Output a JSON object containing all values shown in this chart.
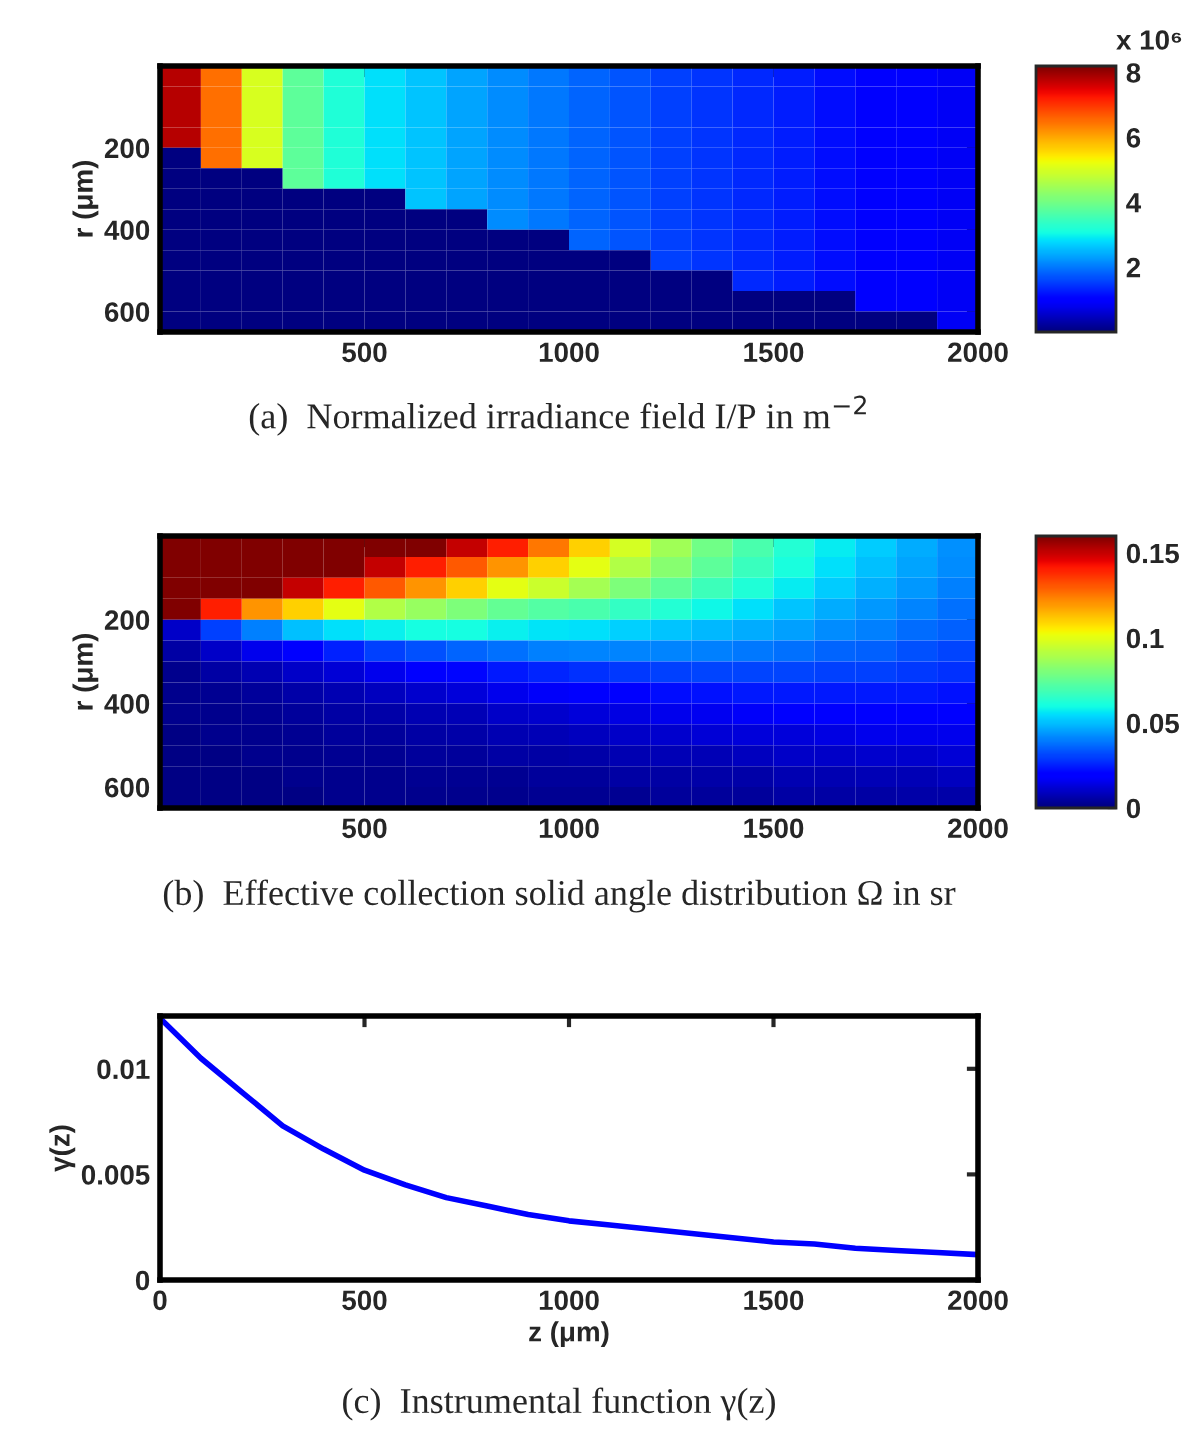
{
  "chart_data": [
    {
      "type": "heatmap",
      "ylabel": "r (μm)",
      "clabel": "x 10⁶",
      "annotations": [
        "(a)  Normalized irradiance field I/P in m$^{−2}$"
      ],
      "xlim": [
        0,
        2000
      ],
      "xticks": [
        500,
        1000,
        1500,
        2000
      ],
      "ylim": [
        650,
        0
      ],
      "yticks": [
        200,
        400,
        600
      ],
      "clim": [
        0,
        8.2
      ],
      "cticks": [
        2,
        4,
        6,
        8
      ],
      "grid": false,
      "cells": [
        [
          7.8,
          6.5,
          5.0,
          3.8,
          3.2,
          2.85,
          2.6,
          2.35,
          2.15,
          2.0,
          1.85,
          1.7,
          1.55,
          1.45,
          1.35,
          1.25,
          1.15,
          1.05,
          0.95,
          0.85
        ],
        [
          7.8,
          6.5,
          5.0,
          3.8,
          3.2,
          2.85,
          2.6,
          2.35,
          2.15,
          2.0,
          1.85,
          1.7,
          1.55,
          1.45,
          1.35,
          1.25,
          1.15,
          1.05,
          0.95,
          0.85
        ],
        [
          7.8,
          6.5,
          5.0,
          3.8,
          3.2,
          2.85,
          2.6,
          2.35,
          2.15,
          2.0,
          1.85,
          1.7,
          1.55,
          1.45,
          1.35,
          1.25,
          1.15,
          1.05,
          0.95,
          0.85
        ],
        [
          7.8,
          6.5,
          5.0,
          3.8,
          3.2,
          2.85,
          2.6,
          2.35,
          2.15,
          2.0,
          1.85,
          1.7,
          1.55,
          1.45,
          1.35,
          1.25,
          1.15,
          1.05,
          0.95,
          0.85
        ],
        [
          0,
          6.5,
          5.0,
          3.8,
          3.2,
          2.85,
          2.6,
          2.35,
          2.15,
          2.0,
          1.85,
          1.7,
          1.55,
          1.45,
          1.35,
          1.25,
          1.15,
          1.05,
          0.95,
          0.85
        ],
        [
          0,
          0,
          0,
          3.8,
          3.2,
          2.85,
          2.6,
          2.35,
          2.15,
          2.0,
          1.85,
          1.7,
          1.55,
          1.45,
          1.35,
          1.25,
          1.15,
          1.05,
          0.95,
          0.85
        ],
        [
          0,
          0,
          0,
          0,
          0,
          0,
          2.6,
          2.35,
          2.15,
          2.0,
          1.85,
          1.7,
          1.55,
          1.45,
          1.35,
          1.25,
          1.15,
          1.05,
          0.95,
          0.85
        ],
        [
          0,
          0,
          0,
          0,
          0,
          0,
          0,
          0,
          2.15,
          2.0,
          1.85,
          1.7,
          1.55,
          1.45,
          1.35,
          1.25,
          1.15,
          1.05,
          0.95,
          0.85
        ],
        [
          0,
          0,
          0,
          0,
          0,
          0,
          0,
          0,
          0,
          0,
          1.85,
          1.7,
          1.55,
          1.45,
          1.35,
          1.25,
          1.15,
          1.05,
          0.95,
          0.85
        ],
        [
          0,
          0,
          0,
          0,
          0,
          0,
          0,
          0,
          0,
          0,
          0,
          0,
          1.55,
          1.45,
          1.35,
          1.25,
          1.15,
          1.05,
          0.95,
          0.85
        ],
        [
          0,
          0,
          0,
          0,
          0,
          0,
          0,
          0,
          0,
          0,
          0,
          0,
          0,
          0,
          1.35,
          1.25,
          1.15,
          1.05,
          0.95,
          0.85
        ],
        [
          0,
          0,
          0,
          0,
          0,
          0,
          0,
          0,
          0,
          0,
          0,
          0,
          0,
          0,
          0,
          0,
          0,
          1.05,
          0.95,
          0.85
        ],
        [
          0,
          0,
          0,
          0,
          0,
          0,
          0,
          0,
          0,
          0,
          0,
          0,
          0,
          0,
          0,
          0,
          0,
          0,
          0,
          0.85
        ]
      ]
    },
    {
      "type": "heatmap",
      "ylabel": "r (μm)",
      "annotations": [
        "(b)  Effective collection solid angle distribution Ω in sr"
      ],
      "xlim": [
        0,
        2000
      ],
      "xticks": [
        500,
        1000,
        1500,
        2000
      ],
      "ylim": [
        650,
        0
      ],
      "yticks": [
        200,
        400,
        600
      ],
      "clim": [
        0,
        0.16
      ],
      "cticks": [
        0,
        0.05,
        0.1,
        0.15
      ],
      "grid": false,
      "cells": [
        [
          0.16,
          0.16,
          0.16,
          0.16,
          0.16,
          0.16,
          0.16,
          0.15,
          0.14,
          0.125,
          0.11,
          0.097,
          0.087,
          0.078,
          0.07,
          0.063,
          0.057,
          0.052,
          0.047,
          0.043
        ],
        [
          0.16,
          0.16,
          0.16,
          0.16,
          0.16,
          0.15,
          0.14,
          0.13,
          0.12,
          0.11,
          0.1,
          0.09,
          0.082,
          0.074,
          0.067,
          0.061,
          0.055,
          0.05,
          0.046,
          0.042
        ],
        [
          0.16,
          0.16,
          0.16,
          0.15,
          0.14,
          0.13,
          0.12,
          0.11,
          0.1,
          0.095,
          0.088,
          0.08,
          0.074,
          0.068,
          0.062,
          0.057,
          0.052,
          0.048,
          0.044,
          0.04
        ],
        [
          0.16,
          0.14,
          0.12,
          0.11,
          0.1,
          0.09,
          0.085,
          0.08,
          0.075,
          0.072,
          0.07,
          0.066,
          0.063,
          0.059,
          0.055,
          0.051,
          0.047,
          0.044,
          0.041,
          0.038
        ],
        [
          0.01,
          0.03,
          0.04,
          0.05,
          0.055,
          0.058,
          0.06,
          0.06,
          0.058,
          0.056,
          0.055,
          0.053,
          0.051,
          0.049,
          0.047,
          0.045,
          0.042,
          0.04,
          0.037,
          0.035
        ],
        [
          0.005,
          0.01,
          0.015,
          0.02,
          0.025,
          0.03,
          0.033,
          0.036,
          0.038,
          0.04,
          0.041,
          0.041,
          0.041,
          0.04,
          0.039,
          0.038,
          0.036,
          0.035,
          0.033,
          0.031
        ],
        [
          0.002,
          0.005,
          0.007,
          0.01,
          0.012,
          0.015,
          0.018,
          0.021,
          0.024,
          0.026,
          0.028,
          0.029,
          0.03,
          0.031,
          0.031,
          0.031,
          0.03,
          0.03,
          0.029,
          0.028
        ],
        [
          0.002,
          0.003,
          0.004,
          0.006,
          0.007,
          0.009,
          0.011,
          0.013,
          0.015,
          0.017,
          0.019,
          0.02,
          0.022,
          0.023,
          0.024,
          0.024,
          0.024,
          0.024,
          0.024,
          0.023
        ],
        [
          0.002,
          0.002,
          0.003,
          0.004,
          0.005,
          0.006,
          0.007,
          0.008,
          0.01,
          0.011,
          0.013,
          0.014,
          0.015,
          0.016,
          0.017,
          0.018,
          0.019,
          0.019,
          0.019,
          0.019
        ],
        [
          0.001,
          0.002,
          0.002,
          0.003,
          0.004,
          0.004,
          0.005,
          0.006,
          0.007,
          0.008,
          0.009,
          0.01,
          0.011,
          0.012,
          0.013,
          0.013,
          0.014,
          0.015,
          0.015,
          0.015
        ],
        [
          0.001,
          0.001,
          0.002,
          0.002,
          0.003,
          0.003,
          0.004,
          0.004,
          0.005,
          0.005,
          0.006,
          0.007,
          0.008,
          0.008,
          0.009,
          0.01,
          0.01,
          0.011,
          0.011,
          0.012
        ],
        [
          0.001,
          0.001,
          0.001,
          0.002,
          0.002,
          0.002,
          0.003,
          0.003,
          0.003,
          0.004,
          0.004,
          0.005,
          0.005,
          0.006,
          0.006,
          0.007,
          0.007,
          0.008,
          0.008,
          0.009
        ],
        [
          0.001,
          0.001,
          0.001,
          0.001,
          0.002,
          0.002,
          0.002,
          0.002,
          0.002,
          0.003,
          0.003,
          0.003,
          0.004,
          0.004,
          0.004,
          0.005,
          0.005,
          0.005,
          0.006,
          0.006
        ]
      ]
    },
    {
      "type": "line",
      "xlabel": "z (μm)",
      "ylabel": "γ(z)",
      "annotations": [
        "(c)  Instrumental function γ(z)"
      ],
      "xlim": [
        0,
        2000
      ],
      "xticks": [
        0,
        500,
        1000,
        1500,
        2000
      ],
      "ylim": [
        0,
        0.0125
      ],
      "yticks": [
        0,
        0.005,
        0.01
      ],
      "grid": false,
      "x": [
        0,
        100,
        200,
        300,
        400,
        500,
        600,
        700,
        800,
        900,
        1000,
        1100,
        1200,
        1300,
        1400,
        1500,
        1600,
        1700,
        1800,
        1900,
        2000
      ],
      "series": [
        {
          "color": "#0000ff",
          "values": [
            0.0124,
            0.0105,
            0.0089,
            0.0073,
            0.0062,
            0.0052,
            0.0045,
            0.0039,
            0.0035,
            0.0031,
            0.0028,
            0.0026,
            0.0024,
            0.0022,
            0.002,
            0.0018,
            0.0017,
            0.0015,
            0.0014,
            0.0013,
            0.0012
          ]
        }
      ]
    }
  ]
}
